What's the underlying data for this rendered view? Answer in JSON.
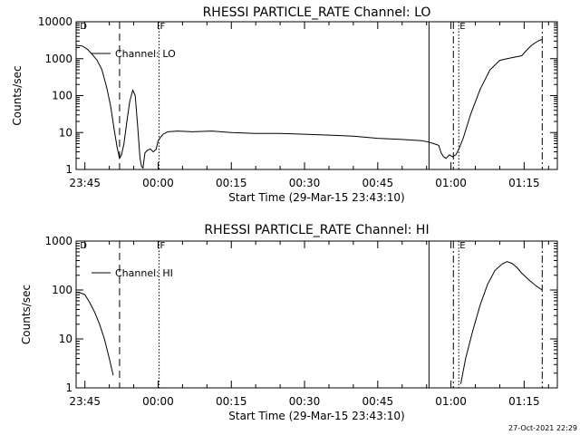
{
  "footer": {
    "timestamp": "27-Oct-2021 22:29"
  },
  "chart_data": [
    {
      "type": "line",
      "title": "RHESSI PARTICLE_RATE Channel: LO",
      "xlabel": "Start Time (29-Mar-15 23:43:10)",
      "ylabel": "Counts/sec",
      "yscale": "log",
      "ylim": [
        1,
        10000
      ],
      "xlim": [
        -1.8,
        96.8
      ],
      "x_units": "minutes after 23:45",
      "xticks": [
        {
          "value": 0,
          "label": "23:45"
        },
        {
          "value": 15,
          "label": "00:00"
        },
        {
          "value": 30,
          "label": "00:15"
        },
        {
          "value": 45,
          "label": "00:30"
        },
        {
          "value": 60,
          "label": "00:45"
        },
        {
          "value": 75,
          "label": "01:00"
        },
        {
          "value": 90,
          "label": "01:15"
        }
      ],
      "yticks": [
        {
          "value": 1,
          "label": "1"
        },
        {
          "value": 10,
          "label": "10"
        },
        {
          "value": 100,
          "label": "100"
        },
        {
          "value": 1000,
          "label": "1000"
        },
        {
          "value": 10000,
          "label": "10000"
        }
      ],
      "legend": {
        "label": "Channel: LO",
        "placement": "top-left"
      },
      "markers": [
        {
          "x": -1.2,
          "label": "D",
          "style": "none"
        },
        {
          "x": 7.1,
          "label": "",
          "style": "dashed"
        },
        {
          "x": 15.2,
          "label": "F",
          "style": "dotted"
        },
        {
          "x": 70.5,
          "label": "",
          "style": "solid"
        },
        {
          "x": 75.5,
          "label": "",
          "style": "dashdot"
        },
        {
          "x": 76.6,
          "label": "E",
          "style": "dotted"
        },
        {
          "x": 93.7,
          "label": "",
          "style": "dashdot"
        }
      ],
      "series": [
        {
          "name": "Channel: LO",
          "x": [
            -1.8,
            -0.5,
            0.5,
            1.5,
            2.5,
            3.5,
            4.5,
            5.3,
            6.0,
            6.6,
            7.1,
            7.5,
            8.0,
            8.6,
            9.2,
            9.8,
            10.3,
            10.8,
            11.3,
            11.6,
            11.9,
            12.3,
            12.8,
            13.4,
            14.0,
            14.6,
            15.0,
            15.5,
            16.0,
            17.0,
            19.0,
            22.0,
            26.0,
            30.0,
            35.0,
            40.0,
            45.0,
            50.0,
            55.0,
            60.0,
            65.0,
            69.0,
            70.5,
            71.5,
            72.5,
            73.0,
            73.5,
            74.0,
            74.7,
            75.3,
            76.0,
            76.6,
            77.5,
            79.0,
            81.0,
            83.0,
            85.0,
            86.5,
            88.0,
            89.5,
            90.5,
            91.5,
            92.5,
            93.2,
            93.7
          ],
          "y": [
            2300,
            2200,
            1800,
            1300,
            900,
            500,
            160,
            50,
            12,
            4,
            2,
            2.5,
            5,
            20,
            70,
            140,
            100,
            15,
            2,
            1.2,
            1.1,
            2.8,
            3.3,
            3.6,
            3.0,
            3.5,
            6.0,
            7.5,
            9.0,
            10.5,
            11.0,
            10.5,
            11.0,
            10.0,
            9.5,
            9.5,
            9.0,
            8.5,
            8.0,
            7.0,
            6.5,
            6.0,
            5.5,
            5.0,
            4.5,
            2.8,
            2.2,
            2.0,
            2.5,
            2.2,
            2.5,
            3.5,
            7.0,
            30,
            150,
            500,
            900,
            1000,
            1100,
            1200,
            1700,
            2300,
            2800,
            3200,
            3300
          ]
        }
      ]
    },
    {
      "type": "line",
      "title": "RHESSI PARTICLE_RATE Channel: HI",
      "xlabel": "Start Time (29-Mar-15 23:43:10)",
      "ylabel": "Counts/sec",
      "yscale": "log",
      "ylim": [
        1,
        1000
      ],
      "xlim": [
        -1.8,
        96.8
      ],
      "x_units": "minutes after 23:45",
      "xticks": [
        {
          "value": 0,
          "label": "23:45"
        },
        {
          "value": 15,
          "label": "00:00"
        },
        {
          "value": 30,
          "label": "00:15"
        },
        {
          "value": 45,
          "label": "00:30"
        },
        {
          "value": 60,
          "label": "00:45"
        },
        {
          "value": 75,
          "label": "01:00"
        },
        {
          "value": 90,
          "label": "01:15"
        }
      ],
      "yticks": [
        {
          "value": 1,
          "label": "1"
        },
        {
          "value": 10,
          "label": "10"
        },
        {
          "value": 100,
          "label": "100"
        },
        {
          "value": 1000,
          "label": "1000"
        }
      ],
      "legend": {
        "label": "Channel: HI",
        "placement": "top-left"
      },
      "markers": [
        {
          "x": -1.2,
          "label": "D",
          "style": "none"
        },
        {
          "x": 7.1,
          "label": "",
          "style": "dashed"
        },
        {
          "x": 15.2,
          "label": "F",
          "style": "dotted"
        },
        {
          "x": 70.5,
          "label": "",
          "style": "solid"
        },
        {
          "x": 75.5,
          "label": "",
          "style": "dashdot"
        },
        {
          "x": 76.6,
          "label": "E",
          "style": "dotted"
        },
        {
          "x": 93.7,
          "label": "",
          "style": "dashdot"
        }
      ],
      "series": [
        {
          "name": "Channel: HI",
          "segments": [
            {
              "x": [
                -1.8,
                -1.0,
                0.0,
                1.0,
                2.0,
                3.0,
                4.0,
                5.0,
                5.8
              ],
              "y": [
                90,
                88,
                80,
                55,
                35,
                20,
                10,
                4,
                1.8
              ]
            },
            {
              "x": [
                77.0,
                78.0,
                79.5,
                81.0,
                82.5,
                84.0,
                85.5,
                86.5,
                87.5,
                88.5,
                89.5,
                91.0,
                92.5,
                93.7
              ],
              "y": [
                1.2,
                4,
                15,
                50,
                130,
                250,
                340,
                380,
                350,
                290,
                220,
                160,
                120,
                100
              ]
            }
          ]
        }
      ]
    }
  ]
}
